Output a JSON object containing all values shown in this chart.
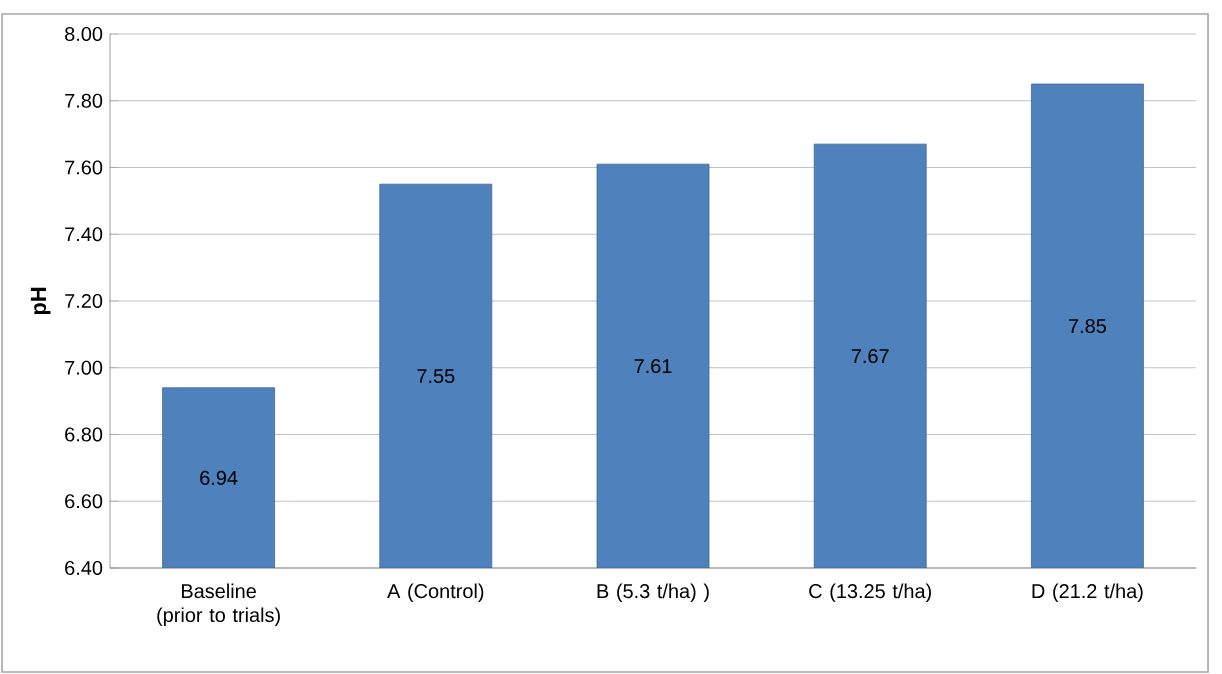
{
  "chart_data": {
    "type": "bar",
    "ylabel": "**pH**",
    "categories": [
      "Baseline (prior to trials)",
      "A (Control)",
      "B (5.3 t/ha) )",
      "C (13.25  t/ha)",
      "D (21.2 t/ha)"
    ],
    "values": [
      6.94,
      7.55,
      7.61,
      7.67,
      7.85
    ],
    "color": "#4f81bd",
    "ylim": [
      6.4,
      8.0
    ],
    "yticks": [
      {
        "value": 6.4,
        "label": "6.40"
      },
      {
        "value": 6.6,
        "label": "6.60"
      },
      {
        "value": 6.8,
        "label": "6.80"
      },
      {
        "value": 7.0,
        "label": "7.00"
      },
      {
        "value": 7.2,
        "label": "7.20"
      },
      {
        "value": 7.4,
        "label": "7.40"
      },
      {
        "value": 7.6,
        "label": "7.60"
      },
      {
        "value": 7.8,
        "label": "7.80"
      },
      {
        "value": 8.0,
        "label": "8.00"
      }
    ],
    "grid": "y",
    "data_labels": true
  }
}
